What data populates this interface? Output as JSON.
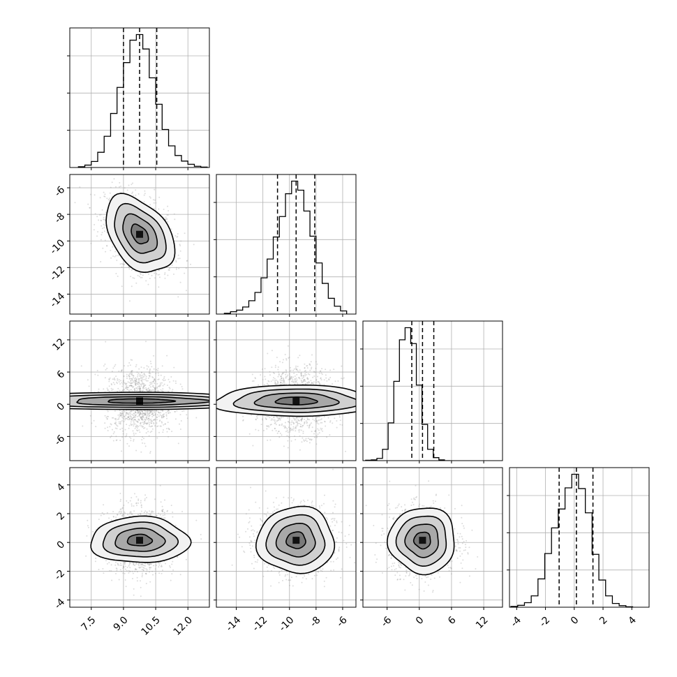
{
  "chart_data": {
    "type": "corner",
    "description_free": true,
    "grid": true,
    "parameters": [
      {
        "range": [
          6.5,
          13.0
        ],
        "ticks": [
          "7.5",
          "9.0",
          "10.5",
          "12.0"
        ],
        "tick_values": [
          7.5,
          9.0,
          10.5,
          12.0
        ]
      },
      {
        "range": [
          -15.5,
          -5.0
        ],
        "ticks": [
          "-14",
          "-12",
          "-10",
          "-8",
          "-6"
        ],
        "tick_values": [
          -14,
          -12,
          -10,
          -8,
          -6
        ]
      },
      {
        "range": [
          -10.5,
          15.5
        ],
        "ticks": [
          "-6",
          "0",
          "6",
          "12"
        ],
        "tick_values": [
          -6,
          0,
          6,
          12
        ]
      },
      {
        "range": [
          -4.5,
          5.2
        ],
        "ticks": [
          "-4",
          "-2",
          "0",
          "2",
          "4"
        ],
        "tick_values": [
          -4,
          -2,
          0,
          2,
          4
        ]
      }
    ],
    "quantiles": [
      [
        9.0,
        9.75,
        10.55
      ],
      [
        -10.9,
        -9.5,
        -8.1
      ],
      [
        -1.4,
        0.6,
        2.7
      ],
      [
        -1.05,
        0.15,
        1.3
      ]
    ],
    "histograms": [
      {
        "edges_start": 6.9,
        "bin_width": 0.3,
        "counts": [
          2,
          6,
          15,
          38,
          78,
          135,
          200,
          262,
          318,
          332,
          296,
          224,
          158,
          95,
          54,
          30,
          16,
          8,
          3,
          1
        ]
      },
      {
        "edges_start": -14.9,
        "bin_width": 0.46,
        "counts": [
          2,
          6,
          10,
          18,
          34,
          55,
          92,
          140,
          196,
          248,
          306,
          338,
          315,
          262,
          198,
          130,
          78,
          40,
          20,
          8
        ]
      },
      {
        "edges_start": -10.0,
        "bin_width": 1.05,
        "counts": [
          1,
          2,
          6,
          30,
          100,
          210,
          320,
          352,
          310,
          200,
          96,
          30,
          8,
          2,
          0
        ]
      },
      {
        "edges_start": -4.4,
        "bin_width": 0.47,
        "counts": [
          2,
          5,
          12,
          30,
          75,
          142,
          210,
          260,
          316,
          352,
          314,
          250,
          140,
          72,
          30,
          10,
          4,
          1
        ]
      }
    ],
    "means": [
      9.75,
      -9.5,
      0.6,
      0.15
    ],
    "sigmas": [
      0.8,
      1.45,
      3.1,
      1.15
    ],
    "correlations": [
      [
        1,
        -0.4,
        0,
        0
      ],
      [
        -0.4,
        1,
        0,
        0
      ],
      [
        0,
        0,
        1,
        0
      ],
      [
        0,
        0,
        0,
        1
      ]
    ],
    "contour_levels_sigma": [
      0.5,
      1.0,
      1.5,
      2.0
    ]
  }
}
